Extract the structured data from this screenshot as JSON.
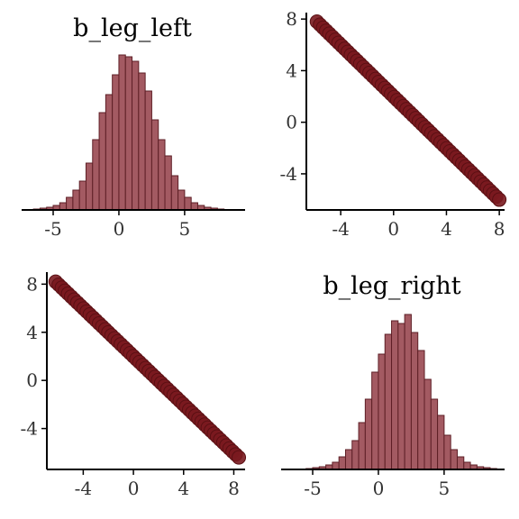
{
  "chart_data": [
    {
      "panel": "top-left",
      "type": "bar",
      "title": "b_leg_left",
      "x_ticks": [
        "-5",
        "0",
        "5"
      ],
      "x_tick_values": [
        -5,
        0,
        5
      ],
      "xlim": [
        -7.4,
        9.6
      ],
      "bin_width": 0.5,
      "bins_start": -6.5,
      "values": [
        1,
        2,
        3,
        5,
        8,
        14,
        22,
        32,
        52,
        78,
        108,
        128,
        150,
        172,
        170,
        165,
        152,
        132,
        100,
        78,
        60,
        38,
        22,
        14,
        8,
        5,
        3,
        2,
        1
      ],
      "ylim": [
        0,
        175
      ]
    },
    {
      "panel": "top-right",
      "type": "scatter",
      "x_ticks": [
        "-4",
        "0",
        "4",
        "8"
      ],
      "x_tick_values": [
        -4,
        0,
        4,
        8
      ],
      "y_ticks": [
        "-4",
        "0",
        "4",
        "8"
      ],
      "y_tick_values": [
        -4,
        0,
        4,
        8
      ],
      "xlim": [
        -6.6,
        8.4
      ],
      "ylim": [
        -6.8,
        8.5
      ],
      "line": {
        "x_from": -5.8,
        "x_to": 8.0,
        "slope": -1,
        "intercept": 2.0
      },
      "points": 60
    },
    {
      "panel": "bottom-left",
      "type": "scatter",
      "x_ticks": [
        "-4",
        "0",
        "4",
        "8"
      ],
      "x_tick_values": [
        -4,
        0,
        4,
        8
      ],
      "y_ticks": [
        "-4",
        "0",
        "4",
        "8"
      ],
      "y_tick_values": [
        -4,
        0,
        4,
        8
      ],
      "xlim": [
        -6.9,
        8.9
      ],
      "ylim": [
        -7.4,
        9.0
      ],
      "line": {
        "x_from": -6.2,
        "x_to": 8.4,
        "slope": -1,
        "intercept": 2.0
      },
      "points": 60
    },
    {
      "panel": "bottom-right",
      "type": "bar",
      "title": "b_leg_right",
      "x_ticks": [
        "-5",
        "0",
        "5"
      ],
      "x_tick_values": [
        -5,
        0,
        5
      ],
      "xlim": [
        -7.4,
        9.6
      ],
      "bin_width": 0.5,
      "bins_start": -5.5,
      "values": [
        1,
        2,
        3,
        5,
        8,
        14,
        22,
        32,
        52,
        78,
        108,
        128,
        150,
        165,
        162,
        172,
        152,
        132,
        100,
        78,
        60,
        38,
        22,
        14,
        8,
        5,
        3,
        2,
        1
      ],
      "ylim": [
        0,
        175
      ]
    }
  ]
}
